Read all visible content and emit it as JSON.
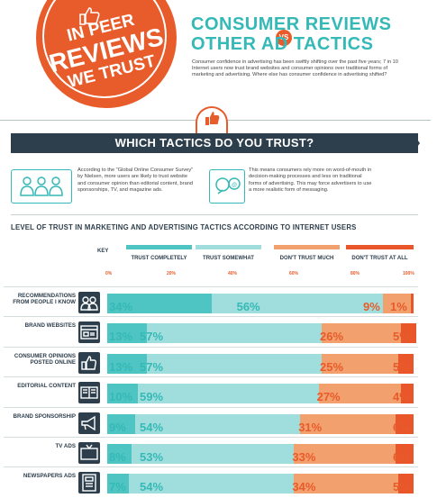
{
  "header": {
    "badge_lines": [
      "IN PEER",
      "REVIEWS",
      "WE TRUST"
    ],
    "title_line1": "CONSUMER REVIEWS",
    "title_vs": "VS",
    "title_line2": "OTHER AD TACTICS",
    "intro": "Consumer confidence in advertising has been swiftly shifting over the past five years; 7 in 10 Internet users now trust brand websites and consumer opinions over traditional forms of marketing and advertising. Where else has consumer confidence in advertising shifted?"
  },
  "banner": {
    "title": "WHICH TACTICS DO YOU TRUST?"
  },
  "info": {
    "left": "According to the \"Global Online Consumer Survey\" by Nielsen, more users are likely to trust website and consumer opinion than editorial content, brand sponsorships, TV, and magazine ads.",
    "right": "This means consumers rely more on word-of-mouth in decision-making processes and less on traditional forms of advertising. This may force advertisers to use a more realistic form of messaging."
  },
  "section": {
    "title": "LEVEL OF TRUST IN MARKETING AND ADVERTISING TACTICS ACCORDING TO INTERNET USERS"
  },
  "colors": {
    "completely": "#4ec5c2",
    "somewhat": "#9fdedd",
    "not_much": "#f3a06f",
    "not_at_all": "#e8562a",
    "navy": "#2d3e4c",
    "pct_teal": "#35b9b6",
    "pct_orange": "#e85b2a"
  },
  "chart_data": {
    "type": "bar",
    "orientation": "horizontal",
    "stacked": true,
    "key_label": "KEY",
    "xlim": [
      0,
      100
    ],
    "tick_labels": [
      "0%",
      "20%",
      "40%",
      "60%",
      "80%",
      "100%"
    ],
    "series": [
      {
        "name": "TRUST COMPLETELY",
        "color": "#4ec5c2"
      },
      {
        "name": "TRUST SOMEWHAT",
        "color": "#9fdedd"
      },
      {
        "name": "DON'T TRUST MUCH",
        "color": "#f3a06f"
      },
      {
        "name": "DON'T TRUST AT ALL",
        "color": "#e8562a"
      }
    ],
    "categories": [
      {
        "label": "RECOMMENDATIONS FROM PEOPLE I KNOW",
        "icon": "people-icon",
        "values": [
          34,
          56,
          9,
          1
        ]
      },
      {
        "label": "BRAND WEBSITES",
        "icon": "browser-icon",
        "values": [
          13,
          57,
          26,
          5
        ]
      },
      {
        "label": "CONSUMER OPINIONS POSTED ONLINE",
        "icon": "thumbs-up-icon",
        "values": [
          13,
          57,
          25,
          5
        ]
      },
      {
        "label": "EDITORIAL CONTENT",
        "icon": "newspaper-icon",
        "values": [
          10,
          59,
          27,
          4
        ]
      },
      {
        "label": "BRAND SPONSORSHIP",
        "icon": "megaphone-icon",
        "values": [
          9,
          54,
          31,
          6
        ]
      },
      {
        "label": "TV ADS",
        "icon": "tv-icon",
        "values": [
          8,
          53,
          33,
          6
        ]
      },
      {
        "label": "NEWSPAPERS ADS",
        "icon": "newspaper-ad-icon",
        "values": [
          7,
          54,
          34,
          5
        ]
      }
    ]
  }
}
